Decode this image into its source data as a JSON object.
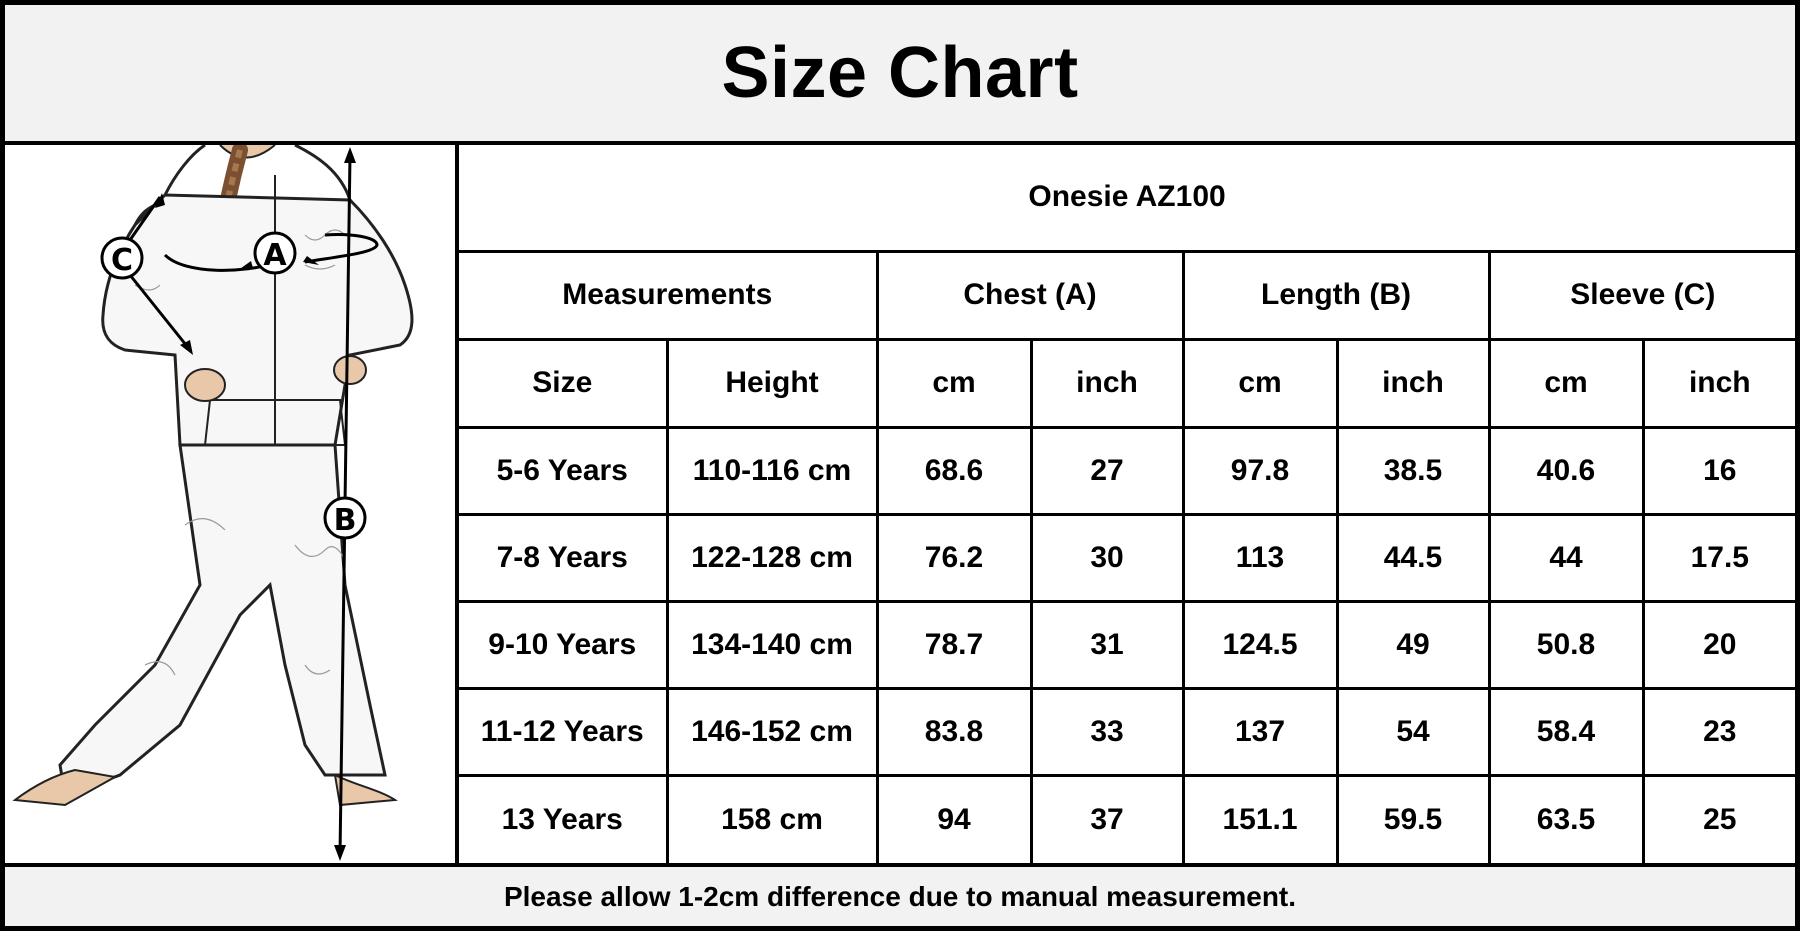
{
  "title": "Size Chart",
  "product": "Onesie AZ100",
  "figure": {
    "markers": [
      "A",
      "B",
      "C"
    ]
  },
  "table": {
    "groups": [
      "Measurements",
      "Chest (A)",
      "Length (B)",
      "Sleeve (C)"
    ],
    "units": [
      "Size",
      "Height",
      "cm",
      "inch",
      "cm",
      "inch",
      "cm",
      "inch"
    ],
    "rows": [
      [
        "5-6 Years",
        "110-116 cm",
        "68.6",
        "27",
        "97.8",
        "38.5",
        "40.6",
        "16"
      ],
      [
        "7-8 Years",
        "122-128 cm",
        "76.2",
        "30",
        "113",
        "44.5",
        "44",
        "17.5"
      ],
      [
        "9-10 Years",
        "134-140 cm",
        "78.7",
        "31",
        "124.5",
        "49",
        "50.8",
        "20"
      ],
      [
        "11-12 Years",
        "146-152 cm",
        "83.8",
        "33",
        "137",
        "54",
        "58.4",
        "23"
      ],
      [
        "13 Years",
        "158 cm",
        "94",
        "37",
        "151.1",
        "59.5",
        "63.5",
        "25"
      ]
    ]
  },
  "footer": "Please allow 1-2cm difference due to manual measurement."
}
